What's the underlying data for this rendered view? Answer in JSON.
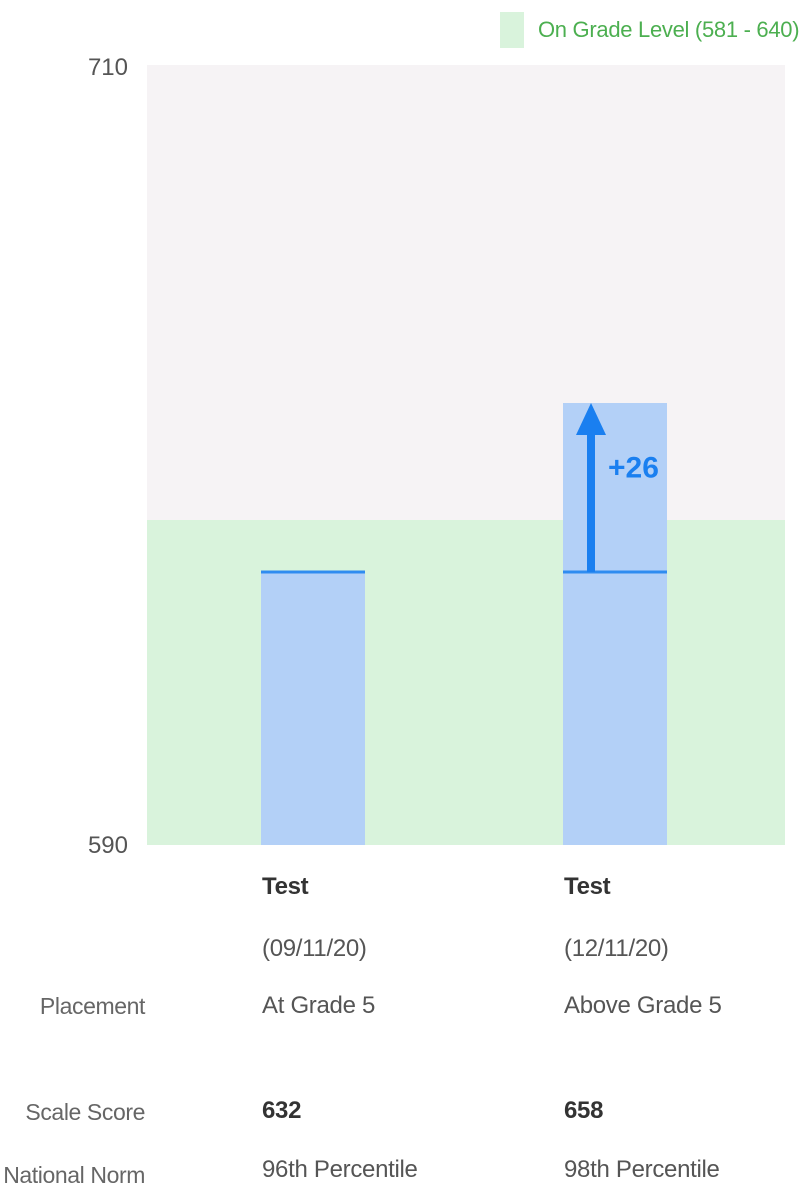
{
  "legend": {
    "label": "On Grade Level (581 - 640)",
    "color": "#d9f3dc",
    "text_color": "#4caf50"
  },
  "colors": {
    "bar": "#b3d0f7",
    "line": "#2f8cf0",
    "arrow": "#1a7ff0",
    "plot_bg": "#f6f3f5",
    "band": "#d9f3dc"
  },
  "chart_data": {
    "type": "bar",
    "ylim": [
      590,
      710
    ],
    "yticks": [
      590,
      710
    ],
    "band": {
      "label": "On Grade Level (581 - 640)",
      "from": 581,
      "to": 640
    },
    "categories": [
      "Test (09/11/20)",
      "Test (12/11/20)"
    ],
    "values": [
      632,
      658
    ],
    "baseline_marker": 632,
    "change": {
      "label": "+26",
      "from": 632,
      "to": 658
    }
  },
  "columns": [
    {
      "title": "Test",
      "date": "(09/11/20)",
      "placement": "At Grade 5",
      "scale_score": "632",
      "national_norm": "96th Percentile"
    },
    {
      "title": "Test",
      "date": "(12/11/20)",
      "placement": "Above Grade 5",
      "scale_score": "658",
      "national_norm": "98th Percentile"
    }
  ],
  "rows": {
    "placement": "Placement",
    "scale_score": "Scale Score",
    "national_norm": "National Norm"
  },
  "y_axis": {
    "top": "710",
    "bottom": "590"
  }
}
